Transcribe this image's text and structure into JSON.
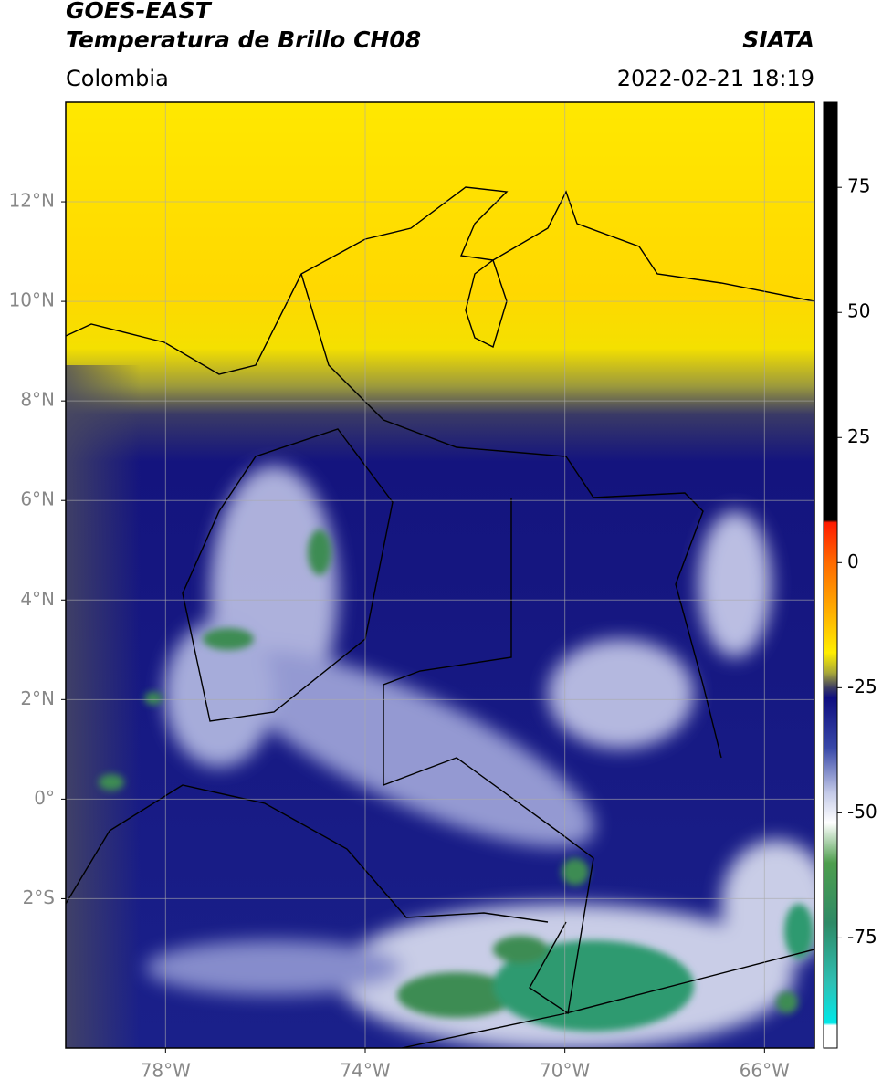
{
  "header": {
    "title": "GOES-EAST",
    "subtitle": "Temperatura de Brillo CH08",
    "agency": "SIATA",
    "region": "Colombia",
    "datetime": "2022-02-21 18:19"
  },
  "map": {
    "lon_lim": [
      -80,
      -65
    ],
    "lat_lim": [
      -5,
      14
    ],
    "grid": true,
    "lon_ticks": [
      {
        "value": -78,
        "label": "78°W"
      },
      {
        "value": -74,
        "label": "74°W"
      },
      {
        "value": -70,
        "label": "70°W"
      },
      {
        "value": -66,
        "label": "66°W"
      }
    ],
    "lat_ticks": [
      {
        "value": 12,
        "label": "12°N"
      },
      {
        "value": 10,
        "label": "10°N"
      },
      {
        "value": 8,
        "label": "8°N"
      },
      {
        "value": 6,
        "label": "6°N"
      },
      {
        "value": 4,
        "label": "4°N"
      },
      {
        "value": 2,
        "label": "2°N"
      },
      {
        "value": 0,
        "label": "0°"
      },
      {
        "value": -2,
        "label": "2°S"
      }
    ]
  },
  "colorbar": {
    "lim": [
      -97,
      92
    ],
    "ticks": [
      75,
      50,
      25,
      0,
      -25,
      -50,
      -75
    ],
    "stops": [
      {
        "value": 92,
        "color": "#000000"
      },
      {
        "value": 8.5,
        "color": "#000000"
      },
      {
        "value": 8,
        "color": "#ff1a00"
      },
      {
        "value": 0,
        "color": "#ff6a00"
      },
      {
        "value": -10,
        "color": "#ffb000"
      },
      {
        "value": -18,
        "color": "#ffee00"
      },
      {
        "value": -22,
        "color": "#a8a838"
      },
      {
        "value": -25,
        "color": "#3c3c62"
      },
      {
        "value": -27,
        "color": "#0e0e80"
      },
      {
        "value": -37,
        "color": "#3848a8"
      },
      {
        "value": -46,
        "color": "#c4cae8"
      },
      {
        "value": -52,
        "color": "#ffffff"
      },
      {
        "value": -60,
        "color": "#4e9e4e"
      },
      {
        "value": -72,
        "color": "#2e8a66"
      },
      {
        "value": -84,
        "color": "#2ec0b4"
      },
      {
        "value": -92,
        "color": "#00e8e8"
      },
      {
        "value": -92.5,
        "color": "#ffffff"
      },
      {
        "value": -97,
        "color": "#ffffff"
      }
    ]
  }
}
